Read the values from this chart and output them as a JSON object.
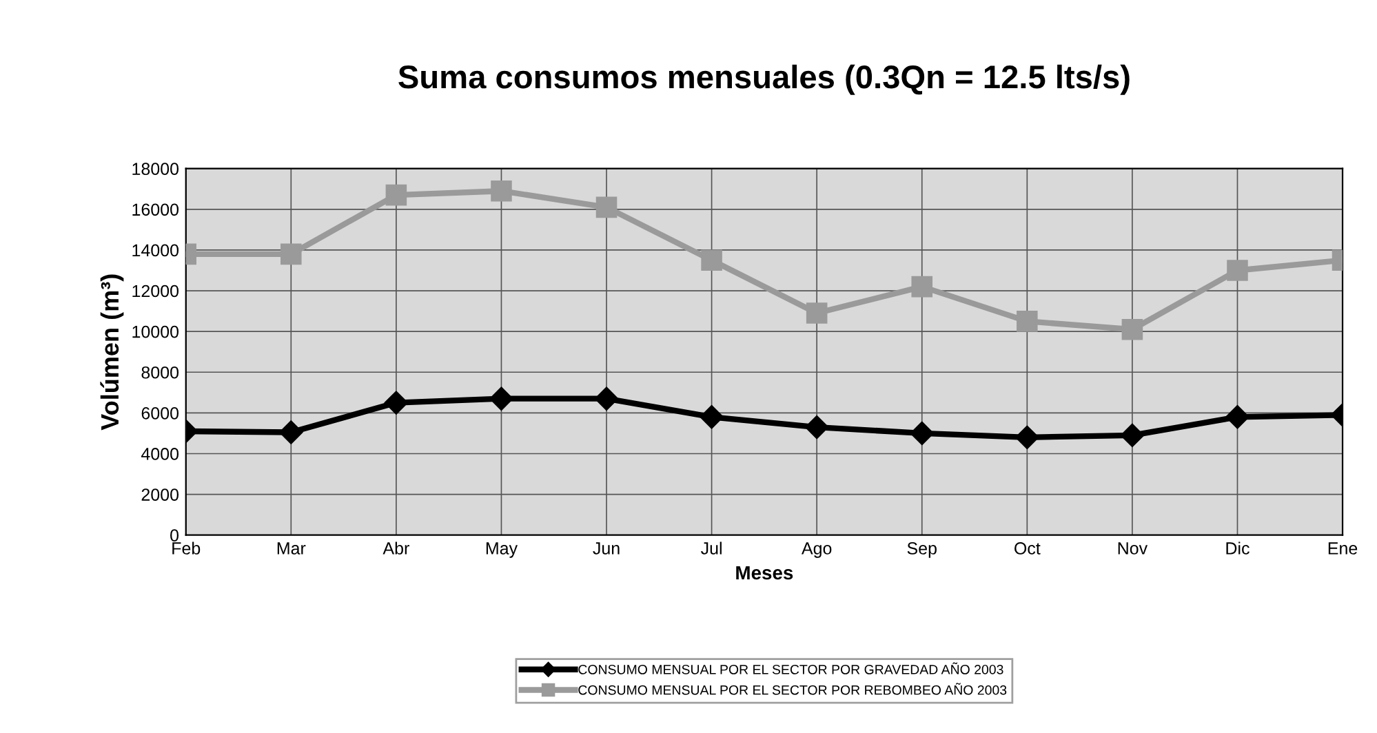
{
  "chart_data": {
    "type": "line",
    "title": "Suma consumos mensuales (0.3Qn = 12.5 lts/s)",
    "xlabel": "Meses",
    "ylabel": "Volúmen (m³)",
    "categories": [
      "Feb",
      "Mar",
      "Abr",
      "May",
      "Jun",
      "Jul",
      "Ago",
      "Sep",
      "Oct",
      "Nov",
      "Dic",
      "Ene"
    ],
    "series": [
      {
        "name": "CONSUMO MENSUAL POR EL SECTOR POR GRAVEDAD AÑO 2003",
        "color": "#000000",
        "marker": "diamond",
        "values": [
          5100,
          5050,
          6500,
          6700,
          6700,
          5800,
          5300,
          5000,
          4800,
          4900,
          5800,
          5900
        ]
      },
      {
        "name": "CONSUMO MENSUAL POR EL SECTOR POR REBOMBEO AÑO 2003",
        "color": "#9a9a9a",
        "marker": "square",
        "values": [
          13800,
          13800,
          16700,
          16900,
          16100,
          13500,
          10900,
          12200,
          10500,
          10100,
          13000,
          13500
        ]
      }
    ],
    "ylim": [
      0,
      18000
    ],
    "yticks": [
      0,
      2000,
      4000,
      6000,
      8000,
      10000,
      12000,
      14000,
      16000,
      18000
    ],
    "grid": true,
    "legend": "bottom"
  }
}
